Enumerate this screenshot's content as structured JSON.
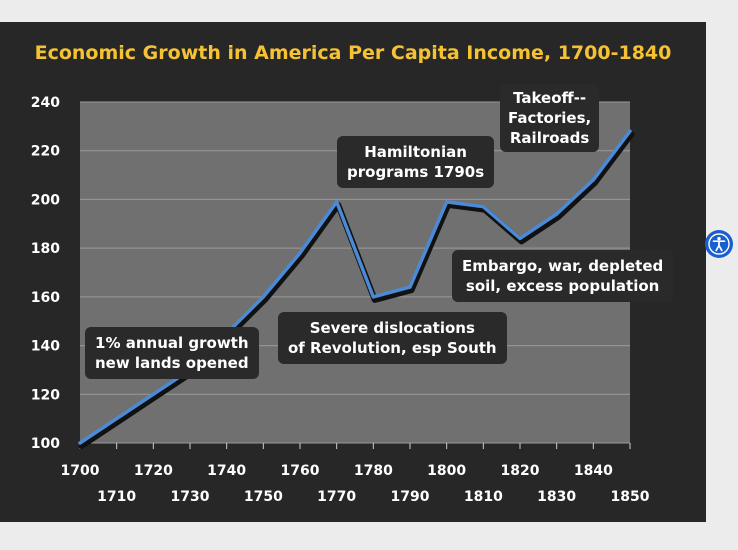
{
  "chart_data": {
    "type": "line",
    "title": "Economic Growth in America Per Capita Income, 1700-1840",
    "xlabel": "",
    "ylabel": "",
    "xlim": [
      1700,
      1850
    ],
    "ylim": [
      100,
      240
    ],
    "x_ticks_upper": [
      "1700",
      "1720",
      "1740",
      "1760",
      "1780",
      "1800",
      "1820",
      "1840"
    ],
    "x_ticks_lower": [
      "1710",
      "1730",
      "1750",
      "1770",
      "1790",
      "1810",
      "1830",
      "1850"
    ],
    "y_ticks": [
      "100",
      "120",
      "140",
      "160",
      "180",
      "200",
      "220",
      "240"
    ],
    "grid": true,
    "line_color": "#4a8ad6",
    "plot_background": "#707070",
    "series": [
      {
        "x": [
          1700,
          1710,
          1720,
          1730,
          1740,
          1750,
          1760,
          1770,
          1780,
          1790,
          1800,
          1810,
          1820,
          1830,
          1840,
          1850
        ],
        "y": [
          100,
          110,
          120,
          130,
          145,
          160,
          178,
          199,
          160,
          164,
          199,
          197,
          184,
          194,
          208,
          228
        ]
      }
    ],
    "annotations": [
      {
        "id": "growth",
        "lines": [
          "1% annual growth",
          "new lands opened"
        ]
      },
      {
        "id": "revolution",
        "lines": [
          "Severe dislocations",
          "of Revolution, esp South"
        ]
      },
      {
        "id": "hamilton",
        "lines": [
          "Hamiltonian",
          "programs 1790s"
        ]
      },
      {
        "id": "embargo",
        "lines": [
          "Embargo, war, depleted",
          "soil, excess population"
        ]
      },
      {
        "id": "takeoff",
        "lines": [
          "Takeoff--",
          "Factories,",
          "Railroads"
        ]
      }
    ]
  },
  "accessibility_icon": "accessibility-person-icon"
}
